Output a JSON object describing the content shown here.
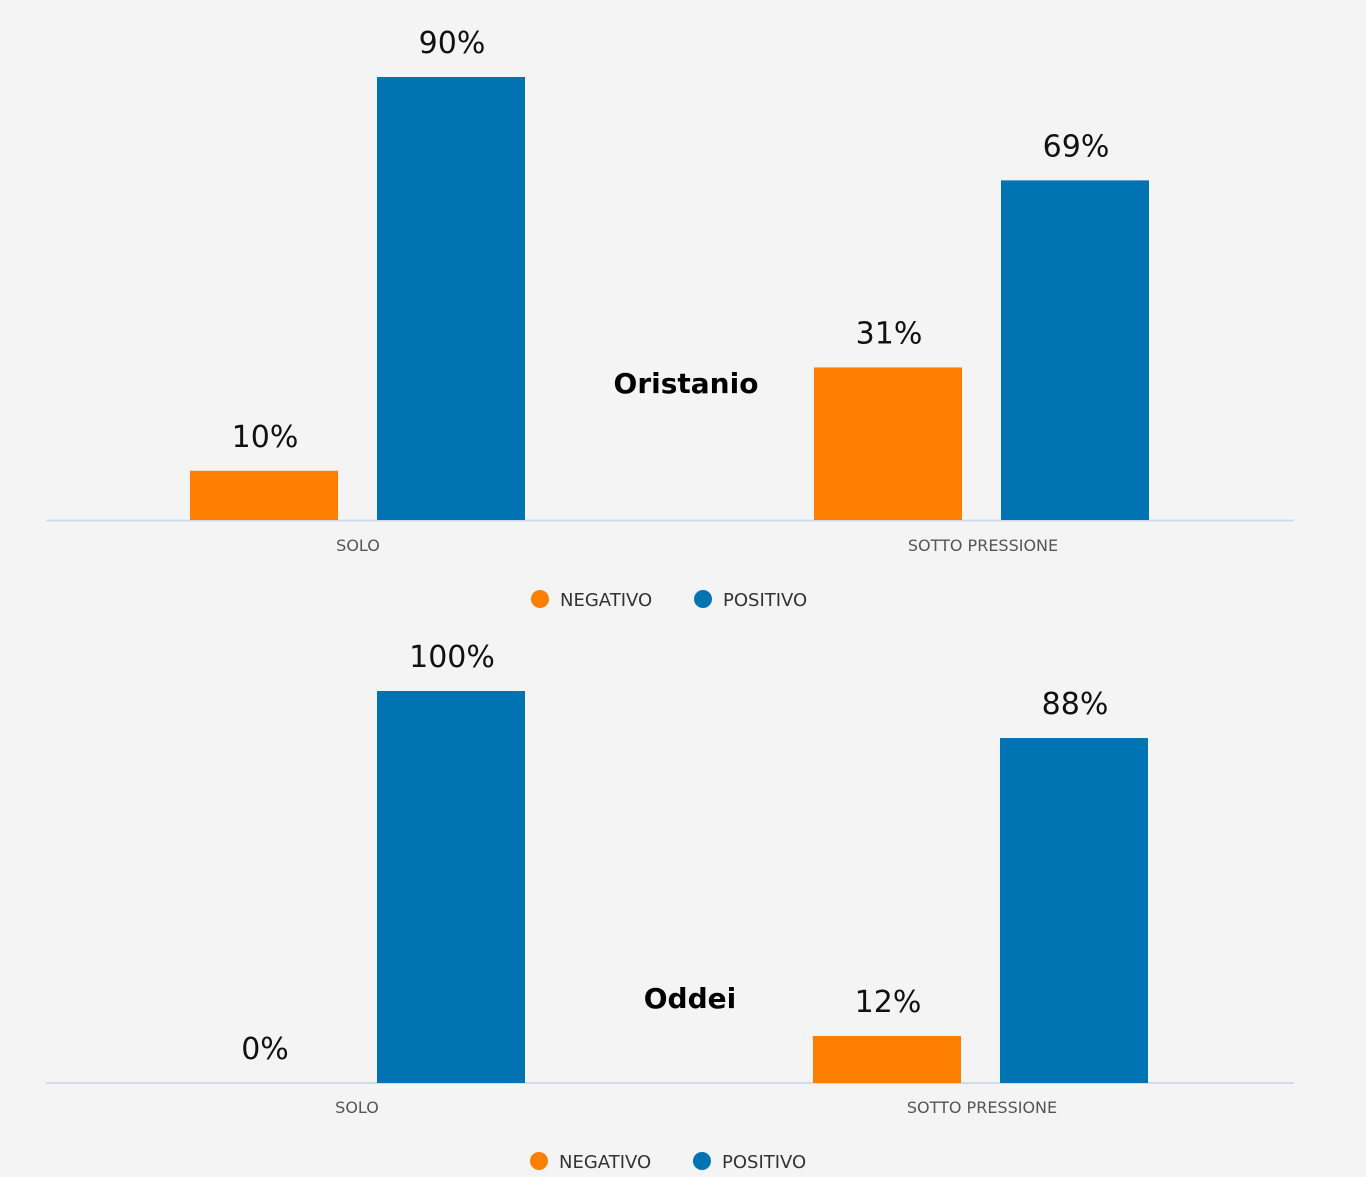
{
  "colors": {
    "negative": "#ff8000",
    "positive": "#0074b3",
    "baseline": "#cfdce8"
  },
  "chart_data": [
    {
      "type": "bar",
      "title": "",
      "annotation": "Oristanio",
      "categories": [
        "SOLO",
        "SOTTO PRESSIONE"
      ],
      "series": [
        {
          "name": "NEGATIVO",
          "values": [
            10,
            31
          ],
          "labels": [
            "10%",
            "31%"
          ]
        },
        {
          "name": "POSITIVO",
          "values": [
            90,
            69
          ],
          "labels": [
            "90%",
            "69%"
          ]
        }
      ],
      "ylim": [
        0,
        90
      ],
      "grid": false,
      "legend": "bottom-center"
    },
    {
      "type": "bar",
      "title": "",
      "annotation": "Oddei",
      "categories": [
        "SOLO",
        "SOTTO PRESSIONE"
      ],
      "series": [
        {
          "name": "NEGATIVO",
          "values": [
            0,
            12
          ],
          "labels": [
            "0%",
            "12%"
          ]
        },
        {
          "name": "POSITIVO",
          "values": [
            100,
            88
          ],
          "labels": [
            "100%",
            "88%"
          ]
        }
      ],
      "ylim": [
        0,
        100
      ],
      "grid": false,
      "legend": "bottom-center"
    }
  ]
}
